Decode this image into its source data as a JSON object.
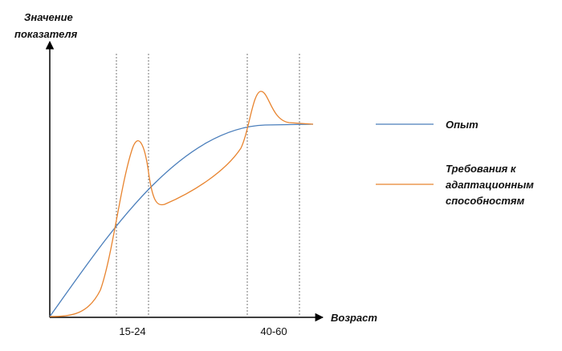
{
  "axes": {
    "y_label": [
      "Значение",
      "показателя"
    ],
    "x_label": "Возраст",
    "x_marks": [
      "15-24",
      "40-60"
    ]
  },
  "legend": [
    {
      "label": [
        "Опыт"
      ]
    },
    {
      "label": [
        "Требования к",
        "адаптационным",
        "способностям"
      ]
    }
  ]
}
